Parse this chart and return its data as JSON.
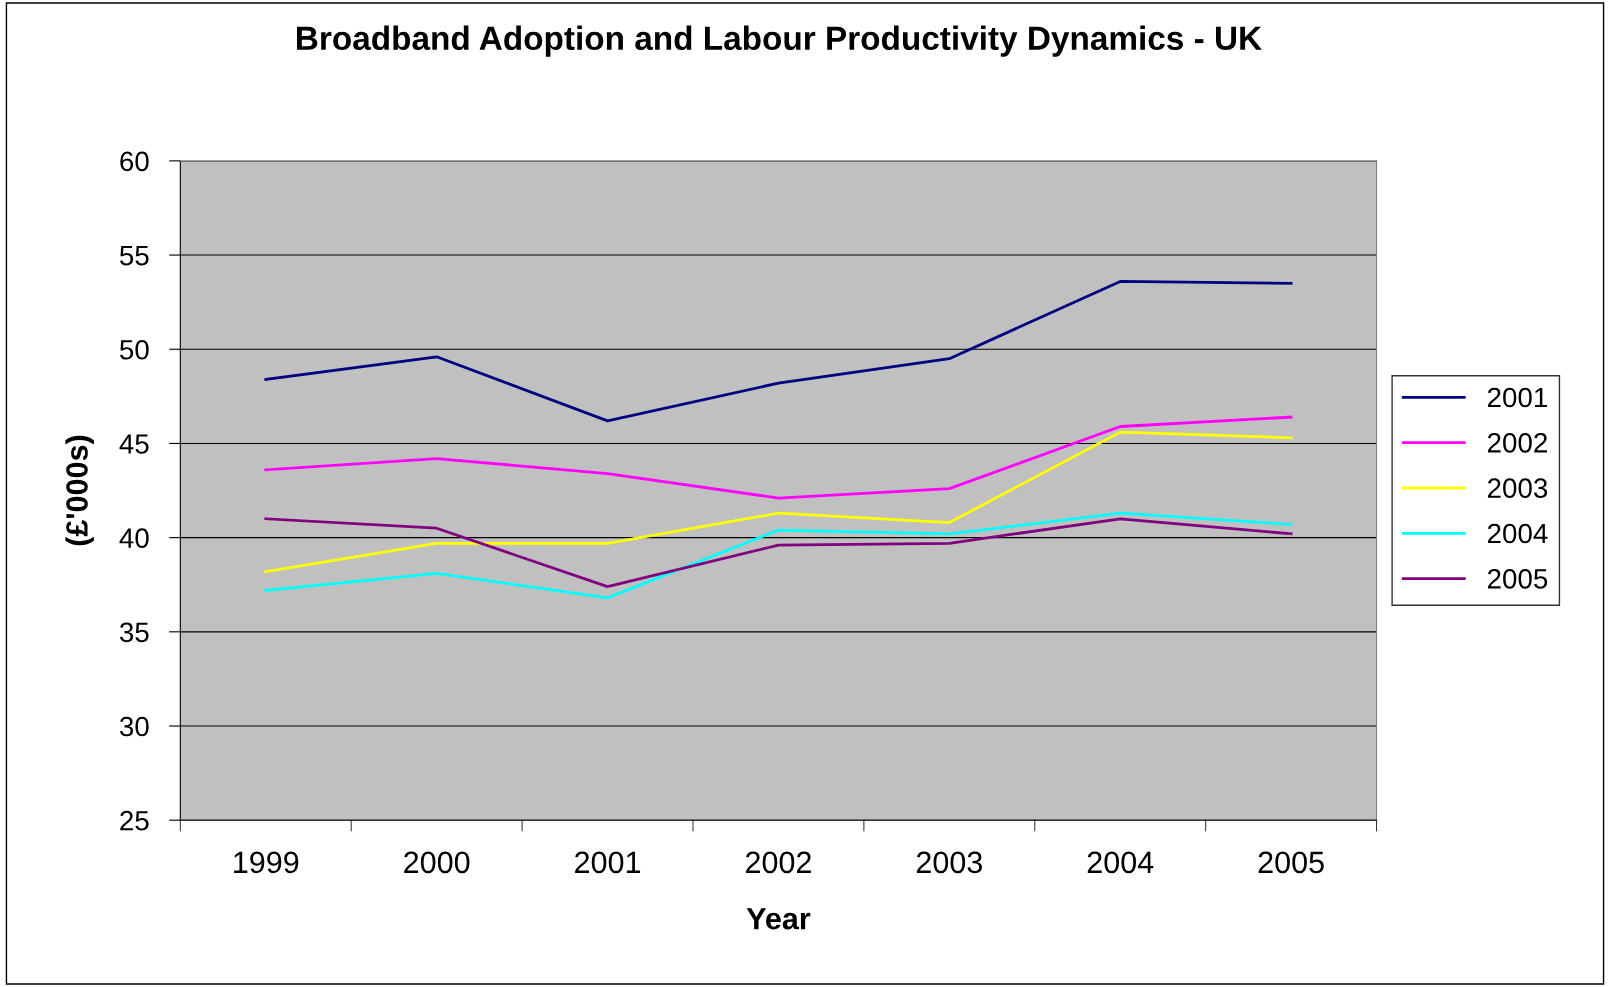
{
  "chart_data": {
    "type": "line",
    "title": "Broadband Adoption and Labour Productivity Dynamics - UK",
    "xlabel": "Year",
    "ylabel": "(£'000s)",
    "categories": [
      "1999",
      "2000",
      "2001",
      "2002",
      "2003",
      "2004",
      "2005"
    ],
    "series": [
      {
        "name": "2001",
        "color": "#000080",
        "values": [
          48.4,
          49.6,
          46.2,
          48.2,
          49.5,
          53.6,
          53.5
        ]
      },
      {
        "name": "2002",
        "color": "#ff00ff",
        "values": [
          43.6,
          44.2,
          43.4,
          42.1,
          42.6,
          45.9,
          46.4
        ]
      },
      {
        "name": "2003",
        "color": "#ffff00",
        "values": [
          38.2,
          39.7,
          39.7,
          41.3,
          40.8,
          45.6,
          45.3
        ]
      },
      {
        "name": "2004",
        "color": "#00ffff",
        "values": [
          37.2,
          38.1,
          36.8,
          40.4,
          40.2,
          41.3,
          40.7
        ]
      },
      {
        "name": "2005",
        "color": "#800080",
        "values": [
          41.0,
          40.5,
          37.4,
          39.6,
          39.7,
          41.0,
          40.2
        ]
      }
    ],
    "ylim": [
      25,
      60
    ],
    "yticks": [
      25,
      30,
      35,
      40,
      45,
      50,
      55,
      60
    ],
    "grid": "y",
    "legend": "right",
    "marker": "none",
    "line_style": "solid"
  }
}
